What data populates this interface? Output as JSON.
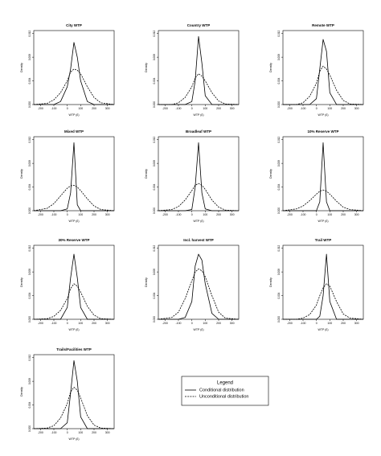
{
  "chart_data": [
    {
      "type": "line",
      "title": "City WTP",
      "x_label": "WTP (£)",
      "y_label": "Density",
      "x": [
        -250,
        -150,
        -100,
        -50,
        0,
        25,
        50,
        75,
        100,
        150,
        200,
        250,
        350
      ],
      "xlim": [
        -250,
        350
      ],
      "xticks": [
        -200,
        -100,
        0,
        100,
        200,
        300
      ],
      "ylim": [
        0,
        0.0125
      ],
      "yticks": [
        {
          "value": 0,
          "label": "0.000"
        },
        {
          "value": 0.004,
          "label": "0.004"
        },
        {
          "value": 0.008,
          "label": "0.008"
        },
        {
          "value": 0.012,
          "label": "0.012"
        }
      ],
      "series": [
        {
          "color": "#000000",
          "dash": false,
          "values": [
            0,
            0,
            0,
            0.0005,
            0.003,
            0.006,
            0.0105,
            0.008,
            0.004,
            0.0005,
            0,
            0,
            0
          ]
        },
        {
          "color": "#000000",
          "dash": true,
          "values": [
            0,
            0.0002,
            0.0008,
            0.002,
            0.004,
            0.0055,
            0.006,
            0.0058,
            0.0052,
            0.003,
            0.0012,
            0.0003,
            0
          ]
        }
      ]
    },
    {
      "type": "line",
      "title": "Country WTP",
      "x_label": "WTP (£)",
      "y_label": "Density",
      "x": [
        -250,
        -150,
        -100,
        -50,
        0,
        25,
        50,
        75,
        100,
        150,
        200,
        250,
        350
      ],
      "xlim": [
        -250,
        350
      ],
      "xticks": [
        -200,
        -100,
        0,
        100,
        200,
        300
      ],
      "ylim": [
        0,
        0.0125
      ],
      "yticks": [
        {
          "value": 0,
          "label": "0.000"
        },
        {
          "value": 0.004,
          "label": "0.004"
        },
        {
          "value": 0.008,
          "label": "0.008"
        },
        {
          "value": 0.012,
          "label": "0.012"
        }
      ],
      "series": [
        {
          "color": "#000000",
          "dash": false,
          "values": [
            0,
            0,
            0,
            0,
            0.0005,
            0.004,
            0.0115,
            0.007,
            0.0015,
            0,
            0,
            0,
            0
          ]
        },
        {
          "color": "#000000",
          "dash": true,
          "values": [
            0,
            0,
            0.0003,
            0.0012,
            0.003,
            0.0045,
            0.0052,
            0.0048,
            0.004,
            0.002,
            0.0006,
            0.0001,
            0
          ]
        }
      ]
    },
    {
      "type": "line",
      "title": "Remote WTP",
      "x_label": "WTP (£)",
      "y_label": "Density",
      "x": [
        -250,
        -150,
        -100,
        -50,
        0,
        25,
        50,
        75,
        100,
        150,
        200,
        250,
        350
      ],
      "xlim": [
        -250,
        350
      ],
      "xticks": [
        -200,
        -100,
        0,
        100,
        200,
        300
      ],
      "ylim": [
        0,
        0.0125
      ],
      "yticks": [
        {
          "value": 0,
          "label": "0.000"
        },
        {
          "value": 0.004,
          "label": "0.004"
        },
        {
          "value": 0.008,
          "label": "0.008"
        },
        {
          "value": 0.012,
          "label": "0.012"
        }
      ],
      "series": [
        {
          "color": "#000000",
          "dash": false,
          "values": [
            0,
            0,
            0,
            0,
            0.001,
            0.006,
            0.011,
            0.009,
            0.002,
            0,
            0,
            0,
            0
          ]
        },
        {
          "color": "#000000",
          "dash": true,
          "values": [
            0,
            0,
            0.0003,
            0.0014,
            0.0036,
            0.0056,
            0.0065,
            0.006,
            0.005,
            0.0024,
            0.0007,
            0.0001,
            0
          ]
        }
      ]
    },
    {
      "type": "line",
      "title": "Mixed WTP",
      "x_label": "WTP (£)",
      "y_label": "Density",
      "x": [
        -250,
        -150,
        -100,
        -50,
        0,
        25,
        50,
        75,
        100,
        150,
        200,
        250,
        350
      ],
      "xlim": [
        -250,
        350
      ],
      "xticks": [
        -200,
        -100,
        0,
        100,
        200,
        300
      ],
      "ylim": [
        0,
        0.0125
      ],
      "yticks": [
        {
          "value": 0,
          "label": "0.000"
        },
        {
          "value": 0.004,
          "label": "0.004"
        },
        {
          "value": 0.008,
          "label": "0.008"
        },
        {
          "value": 0.012,
          "label": "0.012"
        }
      ],
      "series": [
        {
          "color": "#000000",
          "dash": false,
          "values": [
            0,
            0,
            0,
            0,
            0.0003,
            0.003,
            0.0115,
            0.001,
            0,
            0,
            0,
            0,
            0
          ]
        },
        {
          "color": "#000000",
          "dash": true,
          "values": [
            0,
            0.0004,
            0.0012,
            0.0025,
            0.0038,
            0.0042,
            0.0043,
            0.004,
            0.0034,
            0.002,
            0.0008,
            0.0002,
            0
          ]
        }
      ]
    },
    {
      "type": "line",
      "title": "Broadleaf WTP",
      "x_label": "WTP (£)",
      "y_label": "Density",
      "x": [
        -250,
        -150,
        -100,
        -50,
        0,
        25,
        50,
        75,
        100,
        150,
        200,
        250,
        350
      ],
      "xlim": [
        -250,
        350
      ],
      "xticks": [
        -200,
        -100,
        0,
        100,
        200,
        300
      ],
      "ylim": [
        0,
        0.0125
      ],
      "yticks": [
        {
          "value": 0,
          "label": "0.000"
        },
        {
          "value": 0.004,
          "label": "0.004"
        },
        {
          "value": 0.008,
          "label": "0.008"
        },
        {
          "value": 0.012,
          "label": "0.012"
        }
      ],
      "series": [
        {
          "color": "#000000",
          "dash": false,
          "values": [
            0,
            0,
            0,
            0,
            0.0002,
            0.004,
            0.0115,
            0.003,
            0.0003,
            0,
            0,
            0,
            0
          ]
        },
        {
          "color": "#000000",
          "dash": true,
          "values": [
            0,
            0.0002,
            0.0007,
            0.0018,
            0.0034,
            0.0043,
            0.0046,
            0.0043,
            0.0036,
            0.0018,
            0.0006,
            0.0001,
            0
          ]
        }
      ]
    },
    {
      "type": "line",
      "title": "10% Reserve WTP",
      "x_label": "WTP (£)",
      "y_label": "Density",
      "x": [
        -250,
        -150,
        -100,
        -50,
        0,
        25,
        50,
        75,
        100,
        150,
        200,
        250,
        350
      ],
      "xlim": [
        -250,
        350
      ],
      "xticks": [
        -200,
        -100,
        0,
        100,
        200,
        300
      ],
      "ylim": [
        0,
        0.0125
      ],
      "yticks": [
        {
          "value": 0,
          "label": "0.000"
        },
        {
          "value": 0.004,
          "label": "0.004"
        },
        {
          "value": 0.008,
          "label": "0.008"
        },
        {
          "value": 0.012,
          "label": "0.012"
        }
      ],
      "series": [
        {
          "color": "#000000",
          "dash": false,
          "values": [
            0,
            0,
            0,
            0,
            0,
            0.0015,
            0.0115,
            0.0015,
            0,
            0,
            0,
            0,
            0
          ]
        },
        {
          "color": "#000000",
          "dash": true,
          "values": [
            0,
            0.0003,
            0.0008,
            0.0017,
            0.0028,
            0.0033,
            0.0035,
            0.0033,
            0.0028,
            0.0016,
            0.0006,
            0.0002,
            0
          ]
        }
      ]
    },
    {
      "type": "line",
      "title": "30% Reserve WTP",
      "x_label": "WTP (£)",
      "y_label": "Density",
      "x": [
        -250,
        -150,
        -100,
        -50,
        0,
        25,
        50,
        75,
        100,
        150,
        200,
        250,
        350
      ],
      "xlim": [
        -250,
        350
      ],
      "xticks": [
        -200,
        -100,
        0,
        100,
        200,
        300
      ],
      "ylim": [
        0,
        0.0125
      ],
      "yticks": [
        {
          "value": 0,
          "label": "0.000"
        },
        {
          "value": 0.004,
          "label": "0.004"
        },
        {
          "value": 0.008,
          "label": "0.008"
        },
        {
          "value": 0.012,
          "label": "0.012"
        }
      ],
      "series": [
        {
          "color": "#000000",
          "dash": false,
          "values": [
            0,
            0,
            0,
            0,
            0.002,
            0.007,
            0.011,
            0.007,
            0.002,
            0,
            0,
            0,
            0
          ]
        },
        {
          "color": "#000000",
          "dash": true,
          "values": [
            0,
            0.0001,
            0.0005,
            0.0015,
            0.0035,
            0.0052,
            0.006,
            0.0056,
            0.0046,
            0.0022,
            0.0007,
            0.0001,
            0
          ]
        }
      ]
    },
    {
      "type": "line",
      "title": "Incl. harvest WTP",
      "x_label": "WTP (£)",
      "y_label": "Density",
      "x": [
        -250,
        -150,
        -100,
        -50,
        0,
        25,
        50,
        75,
        100,
        150,
        200,
        250,
        350
      ],
      "xlim": [
        -250,
        350
      ],
      "xticks": [
        -200,
        -100,
        0,
        100,
        200,
        300
      ],
      "ylim": [
        0,
        0.0125
      ],
      "yticks": [
        {
          "value": 0,
          "label": "0.000"
        },
        {
          "value": 0.004,
          "label": "0.004"
        },
        {
          "value": 0.008,
          "label": "0.008"
        },
        {
          "value": 0.012,
          "label": "0.012"
        }
      ],
      "series": [
        {
          "color": "#000000",
          "dash": false,
          "values": [
            0,
            0,
            0,
            0.0003,
            0.003,
            0.009,
            0.011,
            0.01,
            0.006,
            0.001,
            0,
            0,
            0
          ]
        },
        {
          "color": "#000000",
          "dash": true,
          "values": [
            0,
            0.0003,
            0.0012,
            0.0035,
            0.0065,
            0.008,
            0.0085,
            0.0082,
            0.0072,
            0.004,
            0.0012,
            0.0002,
            0
          ]
        }
      ]
    },
    {
      "type": "line",
      "title": "Trail WTP",
      "x_label": "WTP (£)",
      "y_label": "Density",
      "x": [
        -250,
        -150,
        -100,
        -50,
        0,
        25,
        50,
        75,
        100,
        150,
        200,
        250,
        350
      ],
      "xlim": [
        -250,
        350
      ],
      "xticks": [
        -200,
        -100,
        0,
        100,
        200,
        300
      ],
      "ylim": [
        0,
        0.0125
      ],
      "yticks": [
        {
          "value": 0,
          "label": "0.000"
        },
        {
          "value": 0.004,
          "label": "0.004"
        },
        {
          "value": 0.008,
          "label": "0.008"
        },
        {
          "value": 0.012,
          "label": "0.012"
        }
      ],
      "series": [
        {
          "color": "#000000",
          "dash": false,
          "values": [
            0,
            0,
            0,
            0,
            0,
            0.0005,
            0.004,
            0.011,
            0.003,
            0,
            0,
            0,
            0
          ]
        },
        {
          "color": "#000000",
          "dash": true,
          "values": [
            0,
            0,
            0.0002,
            0.0008,
            0.0024,
            0.004,
            0.0053,
            0.006,
            0.0056,
            0.003,
            0.0009,
            0.0002,
            0
          ]
        }
      ]
    },
    {
      "type": "line",
      "title": "Trails/Facilities WTP",
      "x_label": "WTP (£)",
      "y_label": "Density",
      "x": [
        -250,
        -150,
        -100,
        -50,
        0,
        25,
        50,
        75,
        100,
        150,
        200,
        250,
        350
      ],
      "xlim": [
        -250,
        350
      ],
      "xticks": [
        -200,
        -100,
        0,
        100,
        200,
        300
      ],
      "ylim": [
        0,
        0.0125
      ],
      "yticks": [
        {
          "value": 0,
          "label": "0.000"
        },
        {
          "value": 0.004,
          "label": "0.004"
        },
        {
          "value": 0.008,
          "label": "0.008"
        },
        {
          "value": 0.012,
          "label": "0.012"
        }
      ],
      "series": [
        {
          "color": "#000000",
          "dash": false,
          "values": [
            0,
            0,
            0,
            0,
            0.001,
            0.006,
            0.0115,
            0.008,
            0.002,
            0,
            0,
            0,
            0
          ]
        },
        {
          "color": "#000000",
          "dash": true,
          "values": [
            0,
            0.0001,
            0.0005,
            0.0018,
            0.0042,
            0.0062,
            0.007,
            0.0065,
            0.0052,
            0.0022,
            0.0006,
            0.0001,
            0
          ]
        }
      ]
    }
  ],
  "legend": {
    "title": "Legend",
    "entries": [
      {
        "name": "Conditional distribution",
        "dash": false
      },
      {
        "name": "Unconditional distribution",
        "dash": true
      }
    ]
  }
}
